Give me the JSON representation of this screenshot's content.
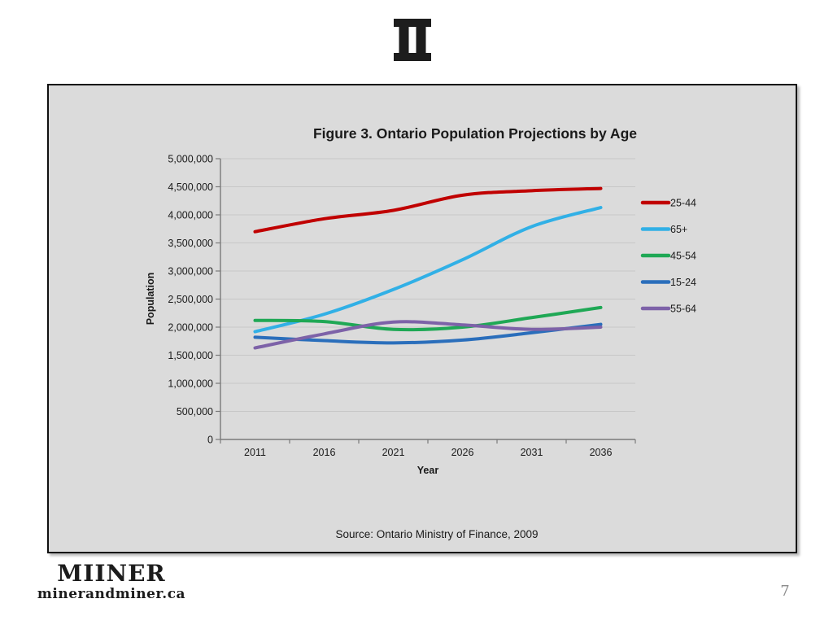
{
  "slide": {
    "page_number": "7",
    "footer": {
      "brand": "MIINER",
      "website": "minerandminer.ca"
    }
  },
  "chart": {
    "title": "Figure 3. Ontario Population Projections by Age",
    "y_axis_label": "Population",
    "x_axis_label": "Year",
    "source": "Source: Ontario Ministry of Finance, 2009"
  },
  "colors": {
    "box_background": "#dbdbdb",
    "gridline": "#c7c7c7",
    "axis": "#7a7a7a",
    "text": "#1a1a1a"
  },
  "chart_data": {
    "type": "line",
    "title": "Figure 3. Ontario Population Projections by Age",
    "xlabel": "Year",
    "ylabel": "Population",
    "categories": [
      "2011",
      "2016",
      "2021",
      "2026",
      "2031",
      "2036"
    ],
    "ylim": [
      0,
      5000000
    ],
    "ytick_step": 500000,
    "grid": true,
    "legend_position": "right",
    "smooth_lines": true,
    "series": [
      {
        "name": "25-44",
        "color": "#c00000",
        "values": [
          3700000,
          3930000,
          4080000,
          4350000,
          4430000,
          4470000
        ]
      },
      {
        "name": "65+",
        "color": "#31b0e6",
        "values": [
          1920000,
          2230000,
          2670000,
          3200000,
          3790000,
          4130000
        ]
      },
      {
        "name": "45-54",
        "color": "#1fa855",
        "values": [
          2120000,
          2100000,
          1960000,
          2000000,
          2170000,
          2350000
        ]
      },
      {
        "name": "15-24",
        "color": "#2a6ebb",
        "values": [
          1820000,
          1760000,
          1720000,
          1770000,
          1900000,
          2050000
        ]
      },
      {
        "name": "55-64",
        "color": "#7d62a8",
        "values": [
          1630000,
          1880000,
          2090000,
          2040000,
          1960000,
          2000000
        ]
      }
    ]
  }
}
